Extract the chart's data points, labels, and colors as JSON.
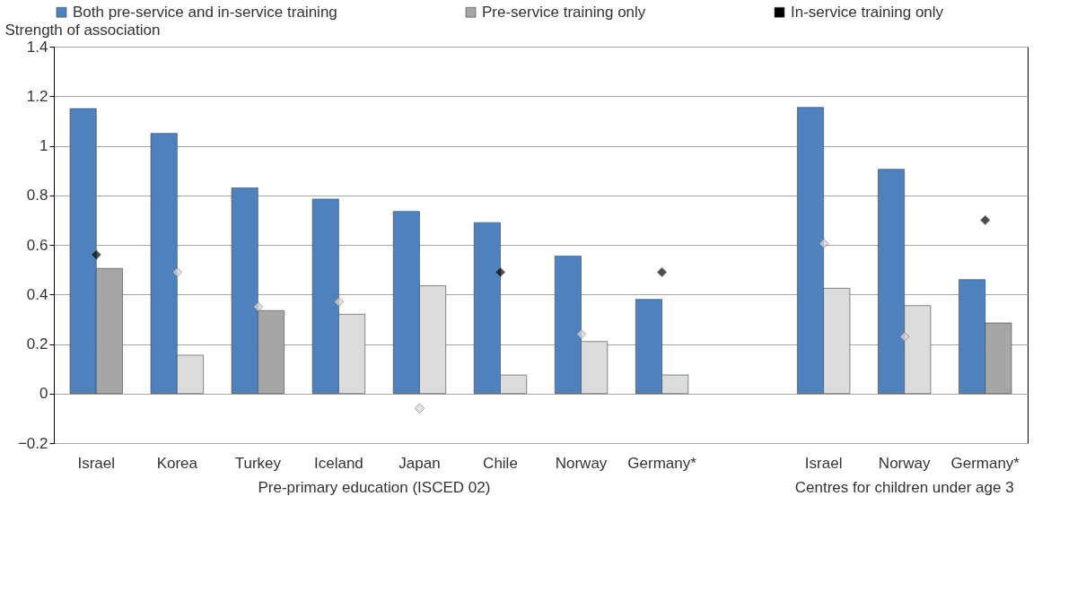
{
  "chart_data": {
    "type": "bar",
    "ylabel": "Strength of association",
    "categories": [
      "Israel",
      "Korea",
      "Turkey",
      "Iceland",
      "Japan",
      "Chile",
      "Norway",
      "Germany*",
      null,
      "Israel",
      "Norway",
      "Germany*"
    ],
    "series": [
      {
        "name": "Both pre-service and in-service training",
        "color": "#4f81bd",
        "values": [
          1.15,
          1.05,
          0.83,
          0.785,
          0.735,
          0.69,
          0.555,
          0.38,
          null,
          1.155,
          0.905,
          0.46
        ]
      },
      {
        "name": "Pre-service training only",
        "color": "#a6a6a6",
        "values": [
          0.505,
          0.155,
          0.335,
          0.32,
          0.435,
          0.075,
          0.21,
          0.075,
          null,
          0.425,
          0.355,
          0.285
        ],
        "colors": [
          "#a6a6a6",
          "#dcdcdc",
          "#a6a6a6",
          "#dcdcdc",
          "#dcdcdc",
          "#dcdcdc",
          "#dcdcdc",
          "#dcdcdc",
          null,
          "#dcdcdc",
          "#dcdcdc",
          "#a6a6a6"
        ]
      },
      {
        "name": "In-service training only",
        "type": "scatter",
        "color": "#000000",
        "values": [
          0.56,
          0.49,
          0.35,
          0.37,
          -0.06,
          0.49,
          0.24,
          0.49,
          null,
          0.605,
          0.23,
          0.7
        ],
        "colors": [
          "#000000",
          "#d9d9d9",
          "#d9d9d9",
          "#d9d9d9",
          "#d9d9d9",
          "#000000",
          "#d9d9d9",
          "#000000",
          null,
          "#d9d9d9",
          "#d9d9d9",
          "#000000"
        ]
      }
    ],
    "annotations": [
      "Pre-primary education (ISCED 02)",
      "Centres for children under age 3"
    ],
    "ylim": [
      -0.2,
      1.4
    ],
    "yticks": [
      -0.2,
      0,
      0.2,
      0.4,
      0.6,
      0.8,
      1,
      1.2,
      1.4
    ],
    "grid": "y",
    "legend": "top",
    "marker": "diamond"
  }
}
